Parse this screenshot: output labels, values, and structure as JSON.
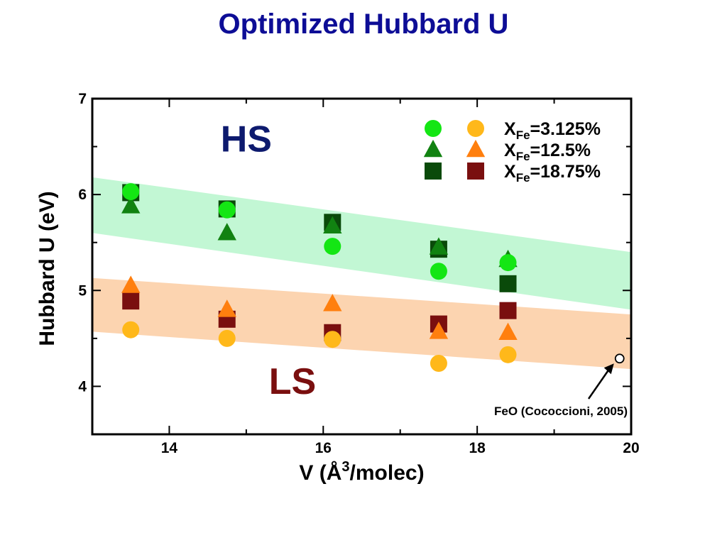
{
  "slide": {
    "title": "Optimized Hubbard U"
  },
  "chart_data": {
    "type": "scatter",
    "title": "",
    "xlabel_main": "V (Å",
    "xlabel_sup": "3",
    "xlabel_tail": "/molec)",
    "ylabel": "Hubbard U (eV)",
    "xlim": [
      13,
      20
    ],
    "ylim": [
      3.5,
      7
    ],
    "xticks": [
      14,
      16,
      18,
      20
    ],
    "yticks": [
      4,
      5,
      6,
      7
    ],
    "grid": false,
    "legend_position": "top-right",
    "legend_rows": [
      {
        "prefix": "X",
        "sub": "Fe",
        "suffix": "=3.125%",
        "marker": "circle",
        "hs_color": "#14e614",
        "ls_color": "#ffb81a"
      },
      {
        "prefix": "X",
        "sub": "Fe",
        "suffix": "=12.5%",
        "marker": "triangle",
        "hs_color": "#118211",
        "ls_color": "#ff7f0e"
      },
      {
        "prefix": "X",
        "sub": "Fe",
        "suffix": "=18.75%",
        "marker": "square",
        "hs_color": "#0a4a0a",
        "ls_color": "#7a0f0f"
      }
    ],
    "bands": [
      {
        "name": "HS",
        "x": [
          13,
          20
        ],
        "upper": [
          6.18,
          5.4
        ],
        "lower": [
          5.6,
          4.8
        ],
        "color": "#c2f7d4"
      },
      {
        "name": "LS",
        "x": [
          13,
          20
        ],
        "upper": [
          5.13,
          4.75
        ],
        "lower": [
          4.57,
          4.18
        ],
        "color": "#fcd4b0"
      }
    ],
    "region_labels": [
      {
        "text": "HS",
        "x": 15.0,
        "y": 6.45,
        "color": "#0d1a6e"
      },
      {
        "text": "LS",
        "x": 15.6,
        "y": 3.92,
        "color": "#7a0f0f"
      }
    ],
    "series": [
      {
        "name": "XFe=3.125% HS",
        "marker": "circle",
        "color": "#14e614",
        "x": [
          13.5,
          14.75,
          16.12,
          17.5,
          18.4
        ],
        "y": [
          6.03,
          5.84,
          5.46,
          5.2,
          5.29
        ]
      },
      {
        "name": "XFe=12.5% HS",
        "marker": "triangle",
        "color": "#118211",
        "x": [
          13.5,
          14.75,
          16.12,
          17.5,
          18.4
        ],
        "y": [
          5.88,
          5.6,
          5.67,
          5.45,
          5.32
        ]
      },
      {
        "name": "XFe=18.75% HS",
        "marker": "square",
        "color": "#0a4a0a",
        "x": [
          13.5,
          14.75,
          16.12,
          17.5,
          18.4
        ],
        "y": [
          6.02,
          5.85,
          5.71,
          5.43,
          5.07
        ]
      },
      {
        "name": "XFe=3.125% LS",
        "marker": "circle",
        "color": "#ffb81a",
        "x": [
          13.5,
          14.75,
          16.12,
          17.5,
          18.4
        ],
        "y": [
          4.59,
          4.5,
          4.49,
          4.24,
          4.33
        ]
      },
      {
        "name": "XFe=12.5% LS",
        "marker": "triangle",
        "color": "#ff7f0e",
        "x": [
          13.5,
          14.75,
          16.12,
          17.5,
          18.4
        ],
        "y": [
          5.05,
          4.8,
          4.86,
          4.57,
          4.56
        ]
      },
      {
        "name": "XFe=18.75% LS",
        "marker": "square",
        "color": "#7a0f0f",
        "x": [
          13.5,
          14.75,
          16.12,
          17.5,
          18.4
        ],
        "y": [
          4.89,
          4.7,
          4.56,
          4.65,
          4.79
        ]
      }
    ],
    "reference": {
      "label": "FeO (Cococcioni, 2005)",
      "x": 19.85,
      "y": 4.29
    }
  }
}
